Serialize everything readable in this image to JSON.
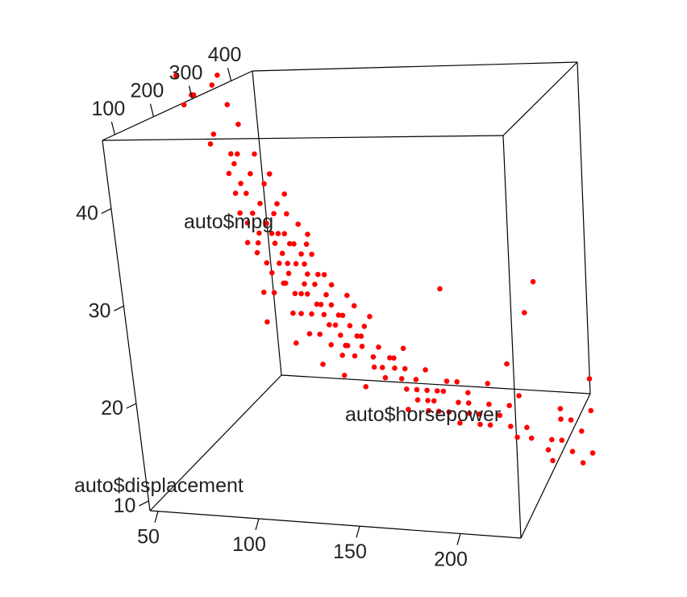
{
  "chart_data": {
    "type": "scatter",
    "title": "",
    "marker_color": "#ff0000",
    "axes": {
      "vertical": {
        "label": "auto$mpg",
        "ticks": [
          10,
          20,
          30,
          40
        ],
        "tick_labels": [
          "10",
          "20",
          "30",
          "40"
        ],
        "range": [
          9,
          47
        ]
      },
      "front": {
        "label": "auto$horsepower",
        "ticks": [
          50,
          100,
          150,
          200
        ],
        "tick_labels": [
          "50",
          "100",
          "150",
          "200"
        ],
        "range": [
          46,
          230
        ]
      },
      "depth": {
        "label": "auto$displacement",
        "ticks": [
          100,
          200,
          300,
          400
        ],
        "tick_labels": [
          "100",
          "200",
          "300",
          "400"
        ],
        "range": [
          68,
          455
        ]
      }
    },
    "points": [
      {
        "x": 46,
        "y": 46
      },
      {
        "x": 48,
        "y": 43
      },
      {
        "x": 52,
        "y": 44
      },
      {
        "x": 53,
        "y": 44
      },
      {
        "x": 58,
        "y": 39
      },
      {
        "x": 60,
        "y": 40
      },
      {
        "x": 65,
        "y": 46
      },
      {
        "x": 65,
        "y": 36
      },
      {
        "x": 67,
        "y": 38
      },
      {
        "x": 67,
        "y": 34
      },
      {
        "x": 68,
        "y": 37
      },
      {
        "x": 68,
        "y": 32
      },
      {
        "x": 70,
        "y": 38
      },
      {
        "x": 70,
        "y": 29
      },
      {
        "x": 70,
        "y": 35
      },
      {
        "x": 71,
        "y": 31
      },
      {
        "x": 72,
        "y": 34
      },
      {
        "x": 74,
        "y": 32
      },
      {
        "x": 74,
        "y": 28
      },
      {
        "x": 75,
        "y": 36
      },
      {
        "x": 75,
        "y": 24
      },
      {
        "x": 75,
        "y": 29
      },
      {
        "x": 76,
        "y": 30
      },
      {
        "x": 78,
        "y": 33
      },
      {
        "x": 78,
        "y": 27
      },
      {
        "x": 80,
        "y": 31
      },
      {
        "x": 80,
        "y": 26
      },
      {
        "x": 80,
        "y": 24
      },
      {
        "x": 81,
        "y": 35
      },
      {
        "x": 83,
        "y": 29
      },
      {
        "x": 84,
        "y": 32
      },
      {
        "x": 84,
        "y": 27
      },
      {
        "x": 85,
        "y": 25
      },
      {
        "x": 85,
        "y": 30
      },
      {
        "x": 86,
        "y": 28
      },
      {
        "x": 86,
        "y": 33
      },
      {
        "x": 88,
        "y": 26
      },
      {
        "x": 88,
        "y": 30
      },
      {
        "x": 88,
        "y": 22
      },
      {
        "x": 90,
        "y": 29
      },
      {
        "x": 90,
        "y": 24
      },
      {
        "x": 90,
        "y": 32
      },
      {
        "x": 92,
        "y": 27
      },
      {
        "x": 92,
        "y": 22
      },
      {
        "x": 95,
        "y": 28
      },
      {
        "x": 95,
        "y": 25
      },
      {
        "x": 95,
        "y": 20
      },
      {
        "x": 96,
        "y": 24
      },
      {
        "x": 97,
        "y": 26
      },
      {
        "x": 97,
        "y": 22
      },
      {
        "x": 98,
        "y": 29
      },
      {
        "x": 100,
        "y": 23
      },
      {
        "x": 100,
        "y": 25
      },
      {
        "x": 100,
        "y": 20
      },
      {
        "x": 102,
        "y": 26
      },
      {
        "x": 103,
        "y": 22
      },
      {
        "x": 105,
        "y": 21
      },
      {
        "x": 105,
        "y": 24
      },
      {
        "x": 105,
        "y": 19
      },
      {
        "x": 107,
        "y": 23
      },
      {
        "x": 108,
        "y": 25
      },
      {
        "x": 110,
        "y": 20
      },
      {
        "x": 110,
        "y": 22
      },
      {
        "x": 110,
        "y": 18
      },
      {
        "x": 112,
        "y": 22
      },
      {
        "x": 113,
        "y": 19
      },
      {
        "x": 115,
        "y": 21
      },
      {
        "x": 115,
        "y": 24
      },
      {
        "x": 116,
        "y": 18
      },
      {
        "x": 120,
        "y": 20
      },
      {
        "x": 120,
        "y": 19
      },
      {
        "x": 122,
        "y": 21
      },
      {
        "x": 125,
        "y": 18
      },
      {
        "x": 125,
        "y": 17
      },
      {
        "x": 129,
        "y": 17
      },
      {
        "x": 130,
        "y": 16
      },
      {
        "x": 133,
        "y": 18
      },
      {
        "x": 135,
        "y": 17
      },
      {
        "x": 138,
        "y": 16
      },
      {
        "x": 140,
        "y": 15
      },
      {
        "x": 140,
        "y": 17
      },
      {
        "x": 145,
        "y": 15
      },
      {
        "x": 145,
        "y": 16
      },
      {
        "x": 150,
        "y": 14
      },
      {
        "x": 150,
        "y": 15
      },
      {
        "x": 150,
        "y": 13
      },
      {
        "x": 153,
        "y": 14
      },
      {
        "x": 155,
        "y": 13
      },
      {
        "x": 158,
        "y": 15
      },
      {
        "x": 160,
        "y": 13
      },
      {
        "x": 165,
        "y": 14
      },
      {
        "x": 165,
        "y": 12
      },
      {
        "x": 170,
        "y": 13
      },
      {
        "x": 170,
        "y": 14
      },
      {
        "x": 175,
        "y": 13
      },
      {
        "x": 180,
        "y": 12
      },
      {
        "x": 190,
        "y": 14
      },
      {
        "x": 190,
        "y": 12
      },
      {
        "x": 193,
        "y": 11
      },
      {
        "x": 198,
        "y": 12
      },
      {
        "x": 200,
        "y": 11
      },
      {
        "x": 208,
        "y": 10
      },
      {
        "x": 210,
        "y": 11
      },
      {
        "x": 215,
        "y": 13
      },
      {
        "x": 215,
        "y": 11
      },
      {
        "x": 220,
        "y": 10
      },
      {
        "x": 225,
        "y": 12
      },
      {
        "x": 225,
        "y": 9
      },
      {
        "x": 230,
        "y": 14
      },
      {
        "x": 230,
        "y": 10
      },
      {
        "x": 88,
        "y": 27
      },
      {
        "x": 92,
        "y": 29
      },
      {
        "x": 82,
        "y": 30
      },
      {
        "x": 86,
        "y": 25
      },
      {
        "x": 93,
        "y": 24
      },
      {
        "x": 96,
        "y": 27
      },
      {
        "x": 99,
        "y": 30
      },
      {
        "x": 102,
        "y": 23
      },
      {
        "x": 105,
        "y": 26
      },
      {
        "x": 108,
        "y": 21
      },
      {
        "x": 112,
        "y": 19
      },
      {
        "x": 118,
        "y": 23
      },
      {
        "x": 125,
        "y": 22
      },
      {
        "x": 140,
        "y": 19
      },
      {
        "x": 150,
        "y": 17
      },
      {
        "x": 160,
        "y": 16
      },
      {
        "x": 170,
        "y": 15
      },
      {
        "x": 180,
        "y": 14
      },
      {
        "x": 185,
        "y": 13
      },
      {
        "x": 175,
        "y": 12
      },
      {
        "x": 165,
        "y": 16
      },
      {
        "x": 155,
        "y": 15
      },
      {
        "x": 145,
        "y": 14
      },
      {
        "x": 135,
        "y": 18
      },
      {
        "x": 128,
        "y": 19
      },
      {
        "x": 118,
        "y": 20
      },
      {
        "x": 100,
        "y": 28
      },
      {
        "x": 95,
        "y": 31
      },
      {
        "x": 90,
        "y": 34
      },
      {
        "x": 84,
        "y": 36
      },
      {
        "x": 78,
        "y": 38
      },
      {
        "x": 72,
        "y": 41
      },
      {
        "x": 68,
        "y": 43
      },
      {
        "x": 62,
        "y": 45
      },
      {
        "x": 205,
        "y": 26
      },
      {
        "x": 200,
        "y": 23
      },
      {
        "x": 190,
        "y": 18
      },
      {
        "x": 210,
        "y": 9
      },
      {
        "x": 215,
        "y": 14
      },
      {
        "x": 220,
        "y": 13
      },
      {
        "x": 160,
        "y": 25
      },
      {
        "x": 110,
        "y": 16
      },
      {
        "x": 88,
        "y": 19
      },
      {
        "x": 75,
        "y": 21
      },
      {
        "x": 100,
        "y": 17
      },
      {
        "x": 120,
        "y": 15
      },
      {
        "x": 140,
        "y": 13
      },
      {
        "x": 180,
        "y": 16
      },
      {
        "x": 195,
        "y": 15
      },
      {
        "x": 230,
        "y": 17
      }
    ]
  }
}
